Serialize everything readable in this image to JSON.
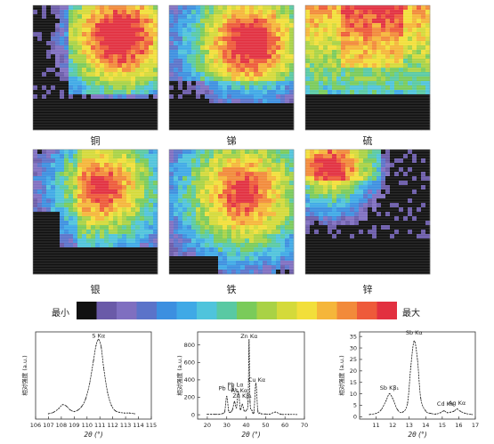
{
  "maps": [
    {
      "label": "铜",
      "pattern": "cu"
    },
    {
      "label": "锑",
      "pattern": "sb"
    },
    {
      "label": "硫",
      "pattern": "s"
    },
    {
      "label": "银",
      "pattern": "ag"
    },
    {
      "label": "铁",
      "pattern": "fe"
    },
    {
      "label": "锌",
      "pattern": "zn"
    }
  ],
  "colorbar": {
    "min_label": "最小",
    "max_label": "最大",
    "colors": [
      "#111111",
      "#6a5aa8",
      "#7f6fc0",
      "#5b73c9",
      "#3c8fe0",
      "#3fa9e6",
      "#4fc4dc",
      "#59c9a3",
      "#7acb5a",
      "#a9d245",
      "#d4da3a",
      "#f2df3a",
      "#f5b63a",
      "#f28a3a",
      "#ee5a3a",
      "#e23040"
    ]
  },
  "chart_data": [
    {
      "type": "line",
      "xlabel": "2θ (°)",
      "ylabel": "相对强度 (a.u.)",
      "xlim": [
        106,
        115
      ],
      "xticks": [
        "106",
        "107",
        "108",
        "109",
        "110",
        "111",
        "112",
        "113",
        "114",
        "115"
      ],
      "annotations": [
        {
          "text": "S Kα",
          "x": 110.9,
          "y": 1.0
        }
      ],
      "x": [
        107.0,
        107.4,
        107.8,
        108.1,
        108.4,
        108.7,
        109.0,
        109.3,
        109.6,
        109.9,
        110.2,
        110.5,
        110.7,
        110.9,
        111.1,
        111.3,
        111.6,
        111.9,
        112.2,
        112.5,
        112.9,
        113.3,
        113.7
      ],
      "y": [
        0.02,
        0.04,
        0.09,
        0.14,
        0.12,
        0.07,
        0.05,
        0.07,
        0.12,
        0.22,
        0.42,
        0.72,
        0.92,
        1.0,
        0.9,
        0.62,
        0.3,
        0.13,
        0.06,
        0.04,
        0.03,
        0.03,
        0.02
      ]
    },
    {
      "type": "line",
      "xlabel": "2θ (°)",
      "ylabel": "相对强度 (a.u.)",
      "xlim": [
        15,
        70
      ],
      "xticks": [
        "20",
        "30",
        "40",
        "50",
        "60",
        "70"
      ],
      "ylim": [
        -50,
        950
      ],
      "yticks": [
        "0",
        "200",
        "400",
        "600",
        "800"
      ],
      "annotations": [
        {
          "text": "Zn Kα",
          "x": 41.5,
          "y": 860
        },
        {
          "text": "Pb Lβ₁",
          "x": 30.5,
          "y": 260
        },
        {
          "text": "Pb Lα",
          "x": 34.5,
          "y": 300
        },
        {
          "text": "As Kα",
          "x": 36.5,
          "y": 235
        },
        {
          "text": "Zn Kβ₁",
          "x": 38.0,
          "y": 175
        },
        {
          "text": "Cu Kα",
          "x": 45.5,
          "y": 360
        }
      ],
      "x": [
        20,
        22,
        24,
        26,
        28,
        29,
        30,
        31,
        32,
        33,
        34,
        35,
        36,
        37,
        38,
        39,
        40,
        41,
        41.5,
        42,
        43,
        44,
        45,
        46,
        47,
        48,
        50,
        52,
        55,
        58,
        62,
        66
      ],
      "y": [
        5,
        5,
        5,
        5,
        15,
        40,
        210,
        45,
        30,
        60,
        150,
        80,
        265,
        60,
        120,
        45,
        50,
        150,
        860,
        150,
        50,
        30,
        360,
        45,
        20,
        10,
        8,
        6,
        30,
        5,
        4,
        3
      ]
    },
    {
      "type": "line",
      "xlabel": "2θ (°)",
      "ylabel": "相对强度 (a.u.)",
      "xlim": [
        10,
        17
      ],
      "xticks": [
        "11",
        "12",
        "13",
        "14",
        "15",
        "16",
        "17"
      ],
      "ylim": [
        -1,
        37
      ],
      "yticks": [
        "0",
        "5",
        "10",
        "15",
        "20",
        "25",
        "30",
        "35"
      ],
      "annotations": [
        {
          "text": "Sb Kα",
          "x": 13.3,
          "y": 35
        },
        {
          "text": "Sb Kβ₁",
          "x": 11.8,
          "y": 11
        },
        {
          "text": "Cd Kα",
          "x": 15.2,
          "y": 4
        },
        {
          "text": "Ag Kα",
          "x": 15.9,
          "y": 4.5
        }
      ],
      "x": [
        10.6,
        11.0,
        11.3,
        11.6,
        11.8,
        12.0,
        12.3,
        12.6,
        12.9,
        13.1,
        13.3,
        13.5,
        13.7,
        14.0,
        14.3,
        14.6,
        14.9,
        15.1,
        15.3,
        15.5,
        15.7,
        15.9,
        16.1,
        16.4,
        16.8
      ],
      "y": [
        1.0,
        1.5,
        3.0,
        7.0,
        10.0,
        8.0,
        3.0,
        2.0,
        6.0,
        22.0,
        33.0,
        25.0,
        8.0,
        2.5,
        1.5,
        1.2,
        1.8,
        2.6,
        1.8,
        2.0,
        2.4,
        3.4,
        2.4,
        1.5,
        1.0
      ]
    }
  ]
}
